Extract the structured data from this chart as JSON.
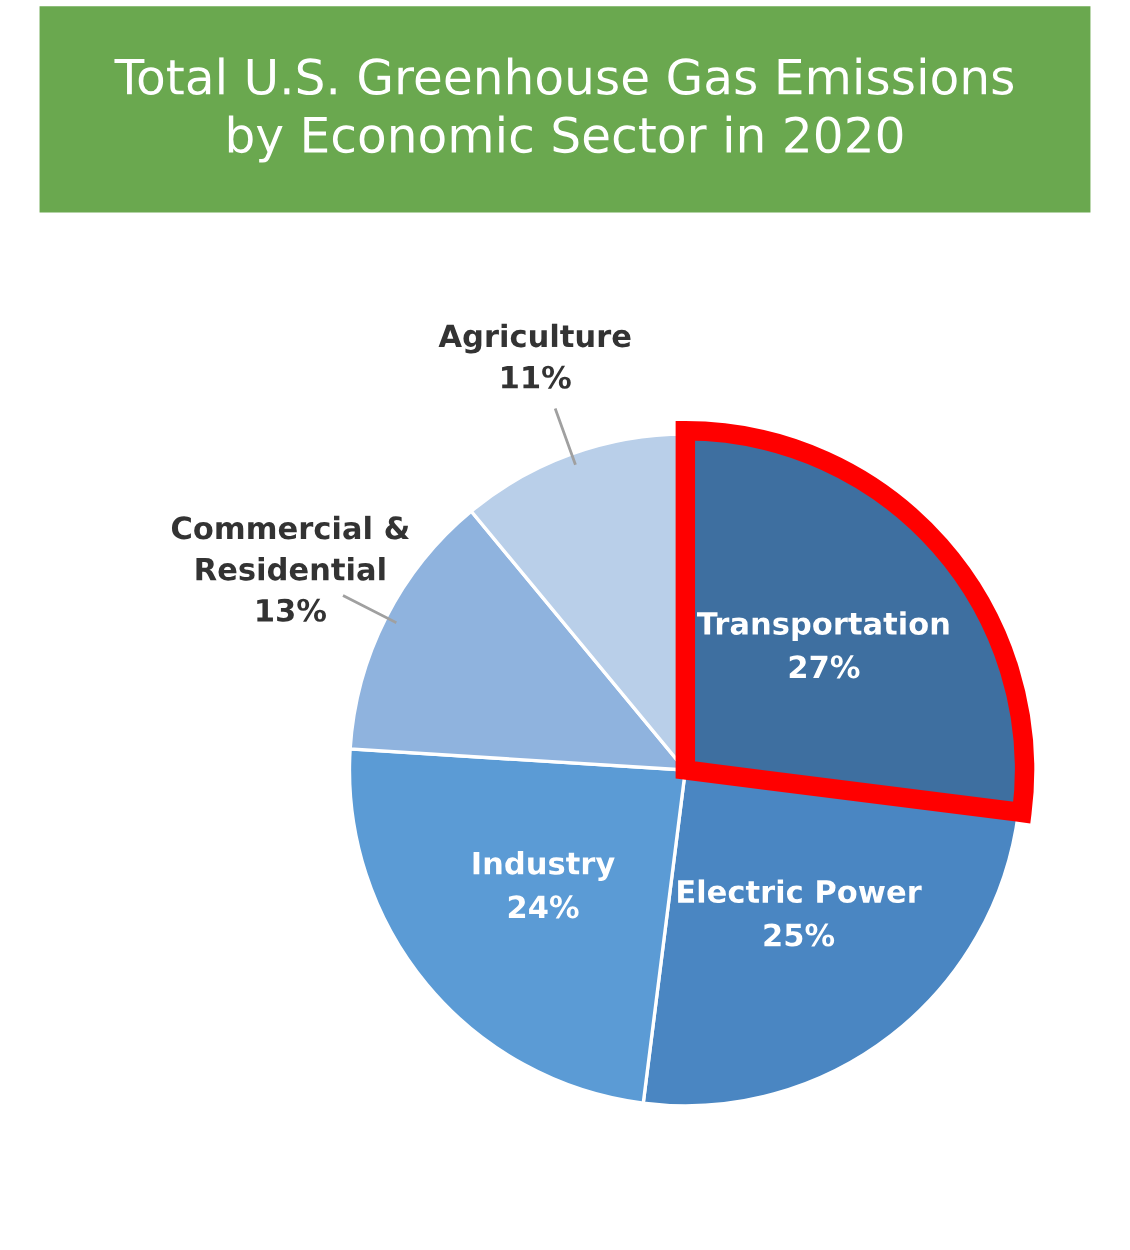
{
  "chart_data": {
    "type": "pie",
    "title": "Total U.S. Greenhouse Gas Emissions\nby Economic Sector in 2020",
    "categories": [
      "Transportation",
      "Electric Power",
      "Industry",
      "Commercial &\nResidential",
      "Agriculture"
    ],
    "values": [
      27,
      25,
      24,
      13,
      11
    ],
    "value_labels": [
      "27%",
      "25%",
      "24%",
      "13%",
      "11%"
    ],
    "colors": [
      "#3e6fa0",
      "#4a86c2",
      "#5b9bd5",
      "#8fb3de",
      "#b9cfe9"
    ]
  }
}
